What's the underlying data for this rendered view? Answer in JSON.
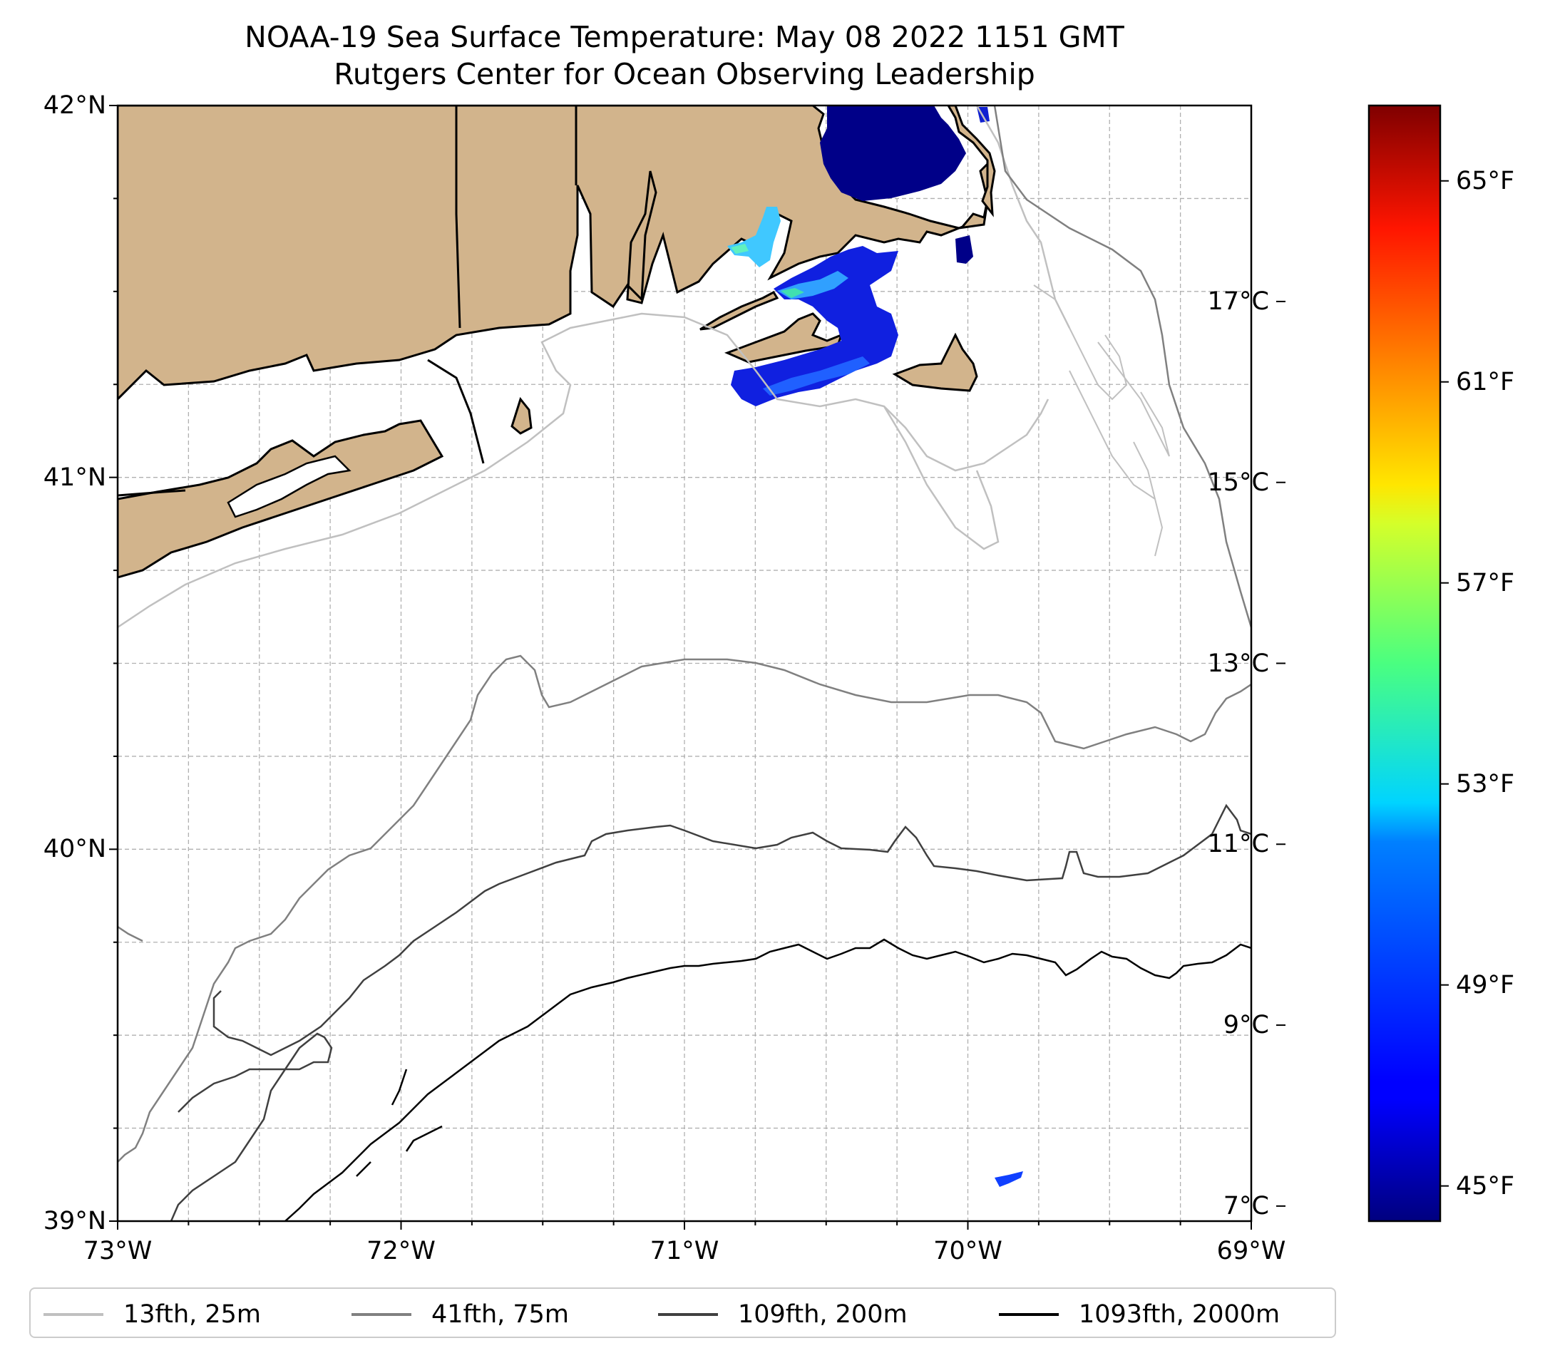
{
  "title": "NOAA-19 Sea Surface Temperature: May 08 2022 1151 GMT",
  "subtitle": "Rutgers Center for Ocean Observing Leadership",
  "map": {
    "lat_ticks": [
      {
        "value": 42,
        "label": "42°N"
      },
      {
        "value": 41,
        "label": "41°N"
      },
      {
        "value": 40,
        "label": "40°N"
      },
      {
        "value": 39,
        "label": "39°N"
      }
    ],
    "lon_ticks": [
      {
        "value": -73,
        "label": "73°W"
      },
      {
        "value": -72,
        "label": "72°W"
      },
      {
        "value": -71,
        "label": "71°W"
      },
      {
        "value": -70,
        "label": "70°W"
      },
      {
        "value": -69,
        "label": "69°W"
      }
    ],
    "lat_range": [
      39,
      42
    ],
    "lon_range": [
      -73,
      -69
    ],
    "grid": true,
    "land_color": "#d2b48c",
    "coastline_color": "#000000"
  },
  "colorbar": {
    "colormap": "jet",
    "celsius_ticks": [
      {
        "value": 7,
        "label": "7°C"
      },
      {
        "value": 9,
        "label": "9°C"
      },
      {
        "value": 11,
        "label": "11°C"
      },
      {
        "value": 13,
        "label": "13°C"
      },
      {
        "value": 15,
        "label": "15°C"
      },
      {
        "value": 17,
        "label": "17°C"
      }
    ],
    "fahrenheit_ticks": [
      {
        "value": 45,
        "label": "45°F"
      },
      {
        "value": 49,
        "label": "49°F"
      },
      {
        "value": 53,
        "label": "53°F"
      },
      {
        "value": 57,
        "label": "57°F"
      },
      {
        "value": 61,
        "label": "61°F"
      },
      {
        "value": 65,
        "label": "65°F"
      }
    ],
    "range_f": [
      44.3,
      66.5
    ]
  },
  "legend": {
    "items": [
      {
        "label": "13fth, 25m",
        "color": "#c0c0c0"
      },
      {
        "label": "41fth, 75m",
        "color": "#808080"
      },
      {
        "label": "109fth, 200m",
        "color": "#404040"
      },
      {
        "label": "1093fth, 2000m",
        "color": "#000000"
      }
    ]
  }
}
